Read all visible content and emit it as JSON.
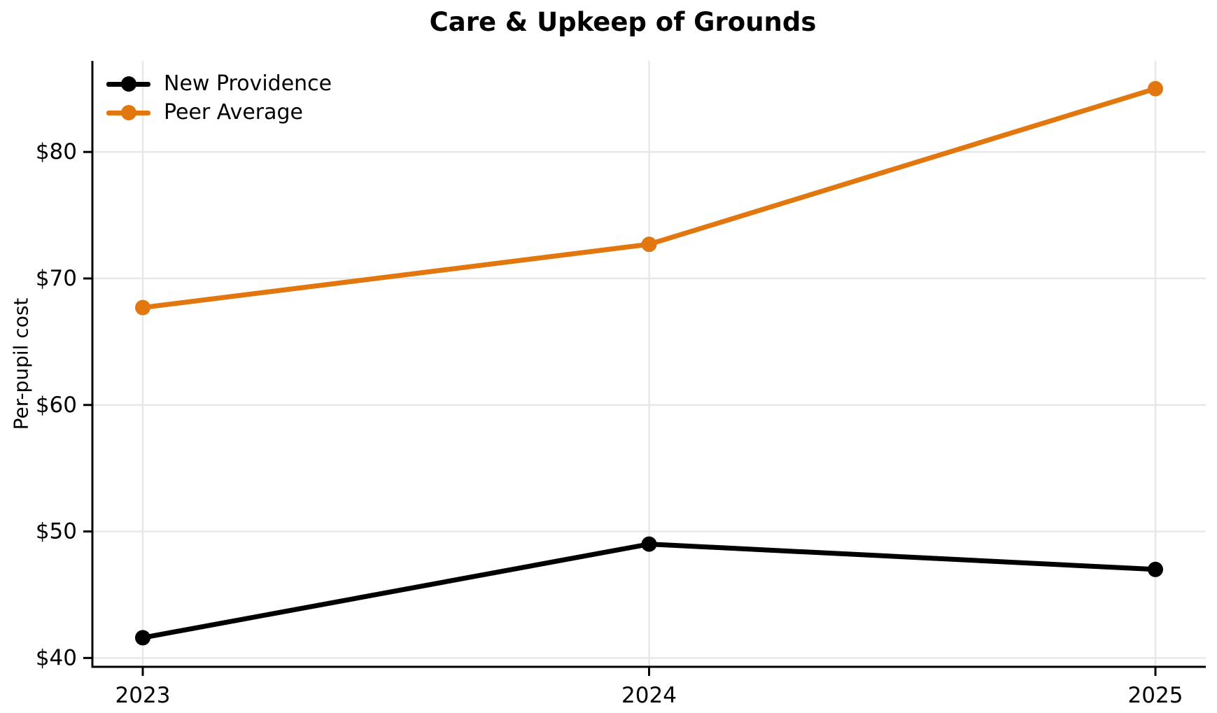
{
  "title": "Care & Upkeep of Grounds",
  "colors": {
    "new_providence": "#000000",
    "peer_average": "#E1770E",
    "grid": "#E7E7E7",
    "spine": "#000000",
    "text": "#000000",
    "background": "#FFFFFF"
  },
  "legend": {
    "items": [
      {
        "label": "New Providence",
        "color": "#000000"
      },
      {
        "label": "Peer Average",
        "color": "#E1770E"
      }
    ]
  },
  "chart_data": {
    "type": "line",
    "title": "Care & Upkeep of Grounds",
    "xlabel": "",
    "ylabel": "Per-pupil cost",
    "categories": [
      "2023",
      "2024",
      "2025"
    ],
    "series": [
      {
        "name": "New Providence",
        "color": "#000000",
        "values": [
          41.6,
          49.0,
          47.0
        ]
      },
      {
        "name": "Peer Average",
        "color": "#E1770E",
        "values": [
          67.7,
          72.7,
          85.0
        ]
      }
    ],
    "y_ticks": [
      40,
      50,
      60,
      70,
      80
    ],
    "y_tick_labels": [
      "$40",
      "$50",
      "$60",
      "$70",
      "$80"
    ],
    "ylim": [
      39.3,
      87.2
    ],
    "grid": true,
    "legend_position": "upper left",
    "marker": "circle"
  }
}
